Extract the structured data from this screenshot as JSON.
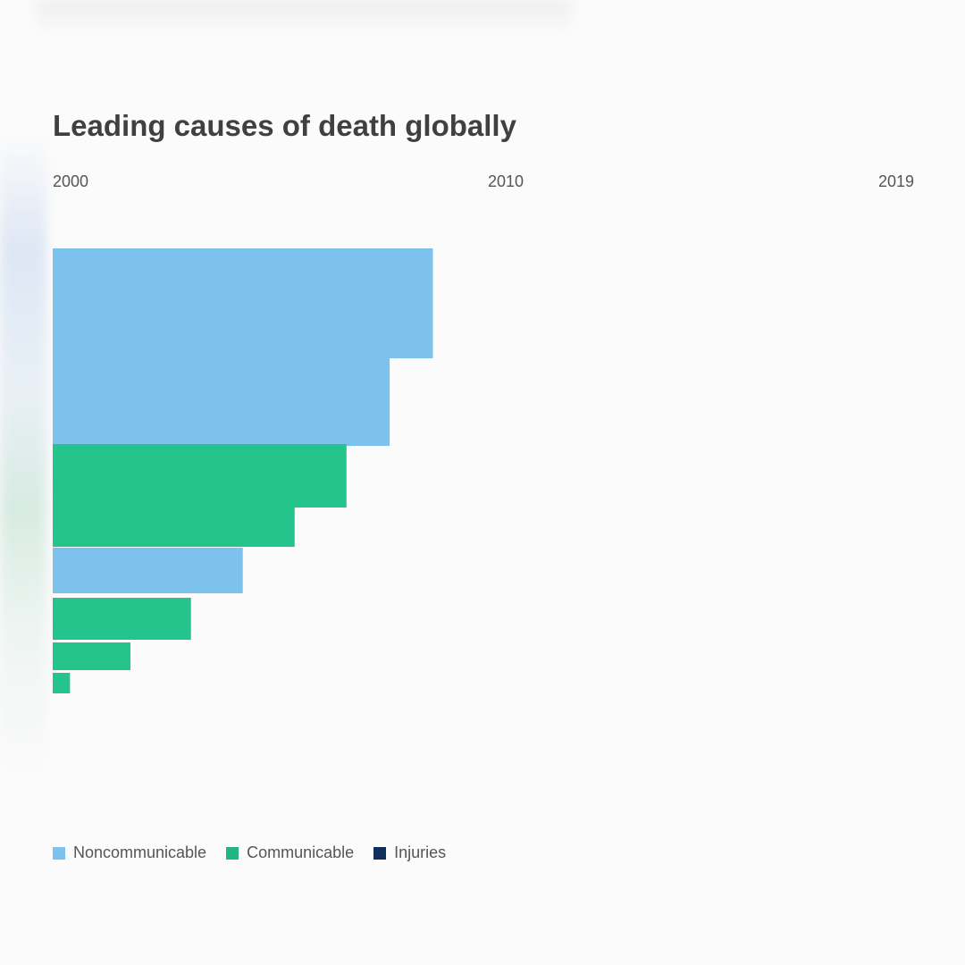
{
  "title": "Leading causes of death globally",
  "chart_data": {
    "type": "bar",
    "orientation": "horizontal",
    "xlim": [
      0,
      1
    ],
    "x_ticks": [
      "2000",
      "2010",
      "2019"
    ],
    "series": [
      {
        "category": "Noncommunicable",
        "value": 0.44,
        "color": "#7dc2ec"
      },
      {
        "category": "Noncommunicable",
        "value": 0.39,
        "color": "#7dc2ec"
      },
      {
        "category": "Communicable",
        "value": 0.34,
        "color": "#26c48d"
      },
      {
        "category": "Communicable",
        "value": 0.28,
        "color": "#26c48d"
      },
      {
        "category": "Noncommunicable",
        "value": 0.22,
        "color": "#7dc2ec"
      },
      {
        "category": "Communicable",
        "value": 0.16,
        "color": "#26c48d"
      },
      {
        "category": "Communicable",
        "value": 0.09,
        "color": "#26c48d"
      },
      {
        "category": "Communicable",
        "value": 0.02,
        "color": "#26c48d"
      }
    ],
    "legend": [
      {
        "label": "Noncommunicable",
        "color": "#7dc2ec"
      },
      {
        "label": "Communicable",
        "color": "#21b584"
      },
      {
        "label": "Injuries",
        "color": "#0e2f5c"
      }
    ],
    "legend_position": "bottom-left"
  }
}
